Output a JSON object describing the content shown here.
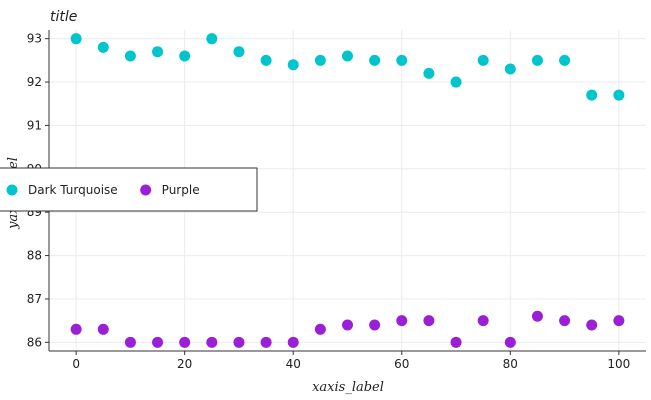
{
  "chart_data": {
    "type": "scatter",
    "title": "title",
    "xlabel": "xaxis_label",
    "ylabel": "yaxis_label",
    "xlim": [
      -5,
      105
    ],
    "ylim": [
      85.8,
      93.2
    ],
    "xticks": [
      0,
      20,
      40,
      60,
      80,
      100
    ],
    "yticks": [
      86,
      87,
      88,
      89,
      90,
      91,
      92,
      93
    ],
    "grid": true,
    "legend_position": "left",
    "series": [
      {
        "name": "Dark Turquoise",
        "color": "#00c5cd",
        "x": [
          0,
          5,
          10,
          15,
          20,
          25,
          30,
          35,
          40,
          45,
          50,
          55,
          60,
          65,
          70,
          75,
          80,
          85,
          90,
          95,
          100
        ],
        "y": [
          93.0,
          92.8,
          92.6,
          92.7,
          92.6,
          93.0,
          92.7,
          92.5,
          92.4,
          92.5,
          92.6,
          92.5,
          92.5,
          92.2,
          92.0,
          92.5,
          92.3,
          92.5,
          92.5,
          91.7,
          91.7
        ]
      },
      {
        "name": "Purple",
        "color": "#9a1fd6",
        "x": [
          0,
          5,
          10,
          15,
          20,
          25,
          30,
          35,
          40,
          45,
          50,
          55,
          60,
          65,
          70,
          75,
          80,
          85,
          90,
          95,
          100
        ],
        "y": [
          86.3,
          86.3,
          86.0,
          86.0,
          86.0,
          86.0,
          86.0,
          86.0,
          86.0,
          86.3,
          86.4,
          86.4,
          86.5,
          86.5,
          86.0,
          86.5,
          86.0,
          86.6,
          86.5,
          86.4,
          86.5
        ]
      }
    ]
  }
}
